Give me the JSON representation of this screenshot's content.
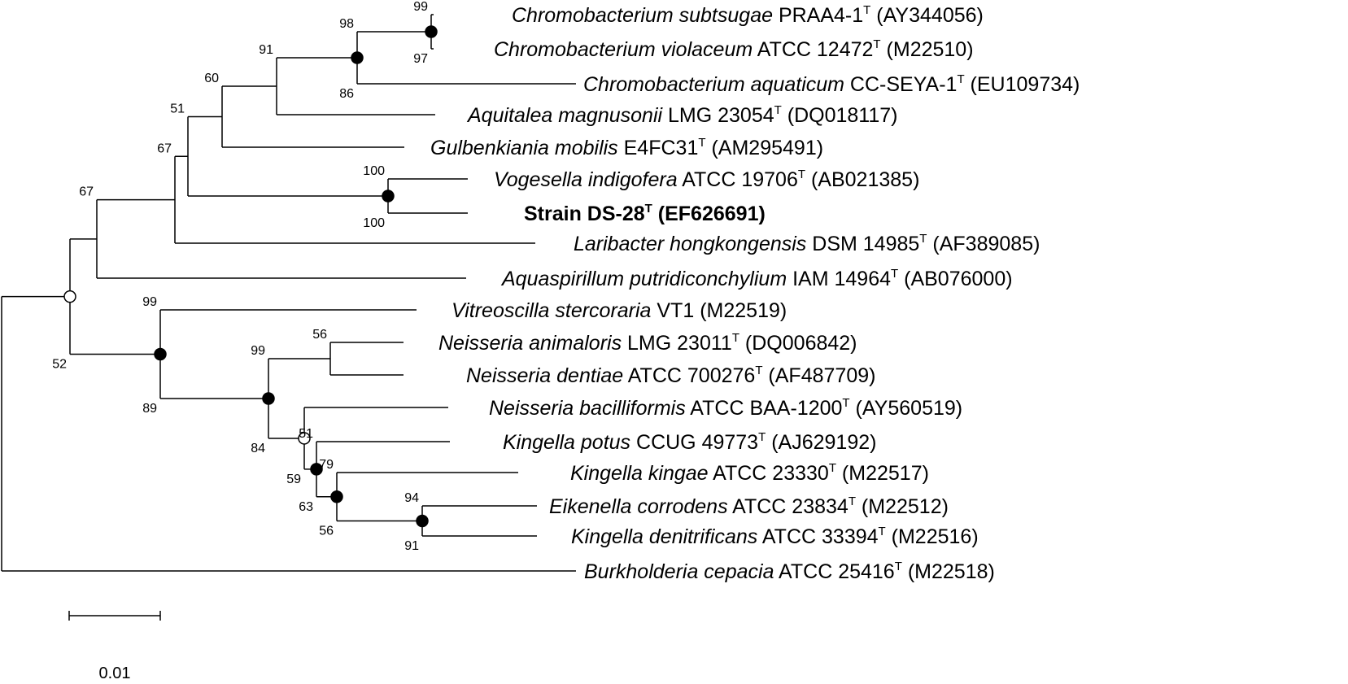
{
  "taxa": [
    {
      "id": "chr_sub",
      "italic": "Chromobacterium subtsugae",
      "strain": "PRAA4-1",
      "accession": "(AY344056)"
    },
    {
      "id": "chr_vio",
      "italic": "Chromobacterium violaceum",
      "strain": "ATCC 12472",
      "accession": "(M22510)"
    },
    {
      "id": "chr_aqu",
      "italic": "Chromobacterium aquaticum",
      "strain": "CC-SEYA-1",
      "accession": "(EU109734)"
    },
    {
      "id": "aqu_mag",
      "italic": "Aquitalea magnusonii",
      "strain": "LMG 23054",
      "accession": "(DQ018117)"
    },
    {
      "id": "gul_mob",
      "italic": "Gulbenkiania mobilis",
      "strain": "E4FC31",
      "accession": "(AM295491)"
    },
    {
      "id": "vog_ind",
      "italic": "Vogesella indigofera",
      "strain": "ATCC 19706",
      "accession": "(AB021385)"
    },
    {
      "id": "ds28",
      "bold": "Strain DS-28",
      "accession": "(EF626691)"
    },
    {
      "id": "lar_hon",
      "italic": "Laribacter hongkongensis",
      "strain": "DSM 14985",
      "accession": "(AF389085)"
    },
    {
      "id": "aqs_put",
      "italic": "Aquaspirillum putridiconchylium",
      "strain": "IAM 14964",
      "accession": "(AB076000)"
    },
    {
      "id": "vit_ste",
      "italic": "Vitreoscilla stercoraria",
      "strain": "VT1",
      "accession": "(M22519)",
      "no_type": true
    },
    {
      "id": "nei_ani",
      "italic": "Neisseria animaloris",
      "strain": "LMG 23011",
      "accession": "(DQ006842)"
    },
    {
      "id": "nei_den",
      "italic": "Neisseria dentiae",
      "strain": "ATCC 700276",
      "accession": "(AF487709)"
    },
    {
      "id": "nei_bac",
      "italic": "Neisseria bacilliformis",
      "strain": "ATCC BAA-1200",
      "accession": "(AY560519)"
    },
    {
      "id": "kin_pot",
      "italic": "Kingella potus",
      "strain": "CCUG 49773",
      "accession": "(AJ629192)"
    },
    {
      "id": "kin_kin",
      "italic": "Kingella kingae",
      "strain": "ATCC 23330",
      "accession": "(M22517)"
    },
    {
      "id": "eik_cor",
      "italic": "Eikenella corrodens",
      "strain": "ATCC 23834",
      "accession": "(M22512)"
    },
    {
      "id": "kin_den",
      "italic": "Kingella denitrificans",
      "strain": "ATCC 33394",
      "accession": "(M22516)"
    },
    {
      "id": "bur_cep",
      "italic": "Burkholderia cepacia",
      "strain": "ATCC 25416",
      "accession": "(M22518)"
    }
  ],
  "type_mark": "T",
  "bootstrap": {
    "n_chrsub_chrvio": {
      "above": "99",
      "below": "97"
    },
    "n_chr": {
      "above": "98",
      "below": "86"
    },
    "n_chr_aqu": {
      "above": "91"
    },
    "n_gul": {
      "above": "60"
    },
    "n_vog_ds": {
      "above": "100",
      "below": "100"
    },
    "n_51": {
      "above": "51"
    },
    "n_67a": {
      "above": "67"
    },
    "n_67b": {
      "above": "67"
    },
    "n_root_in": {
      "below": "52"
    },
    "n_neis_vit": {
      "above": "99",
      "below": "89"
    },
    "n_nei_ani_den": {
      "above": "56"
    },
    "n_neis_main": {
      "above": "99",
      "below": "84"
    },
    "n_59": {
      "below": "59"
    },
    "n_51_63": {
      "above": "51",
      "below": "63"
    },
    "n_79_56": {
      "above": "79",
      "below": "56"
    },
    "n_eik_kden": {
      "above": "94",
      "below": "91"
    }
  },
  "scale_bar": {
    "label": "0.01",
    "value": 0.01
  }
}
